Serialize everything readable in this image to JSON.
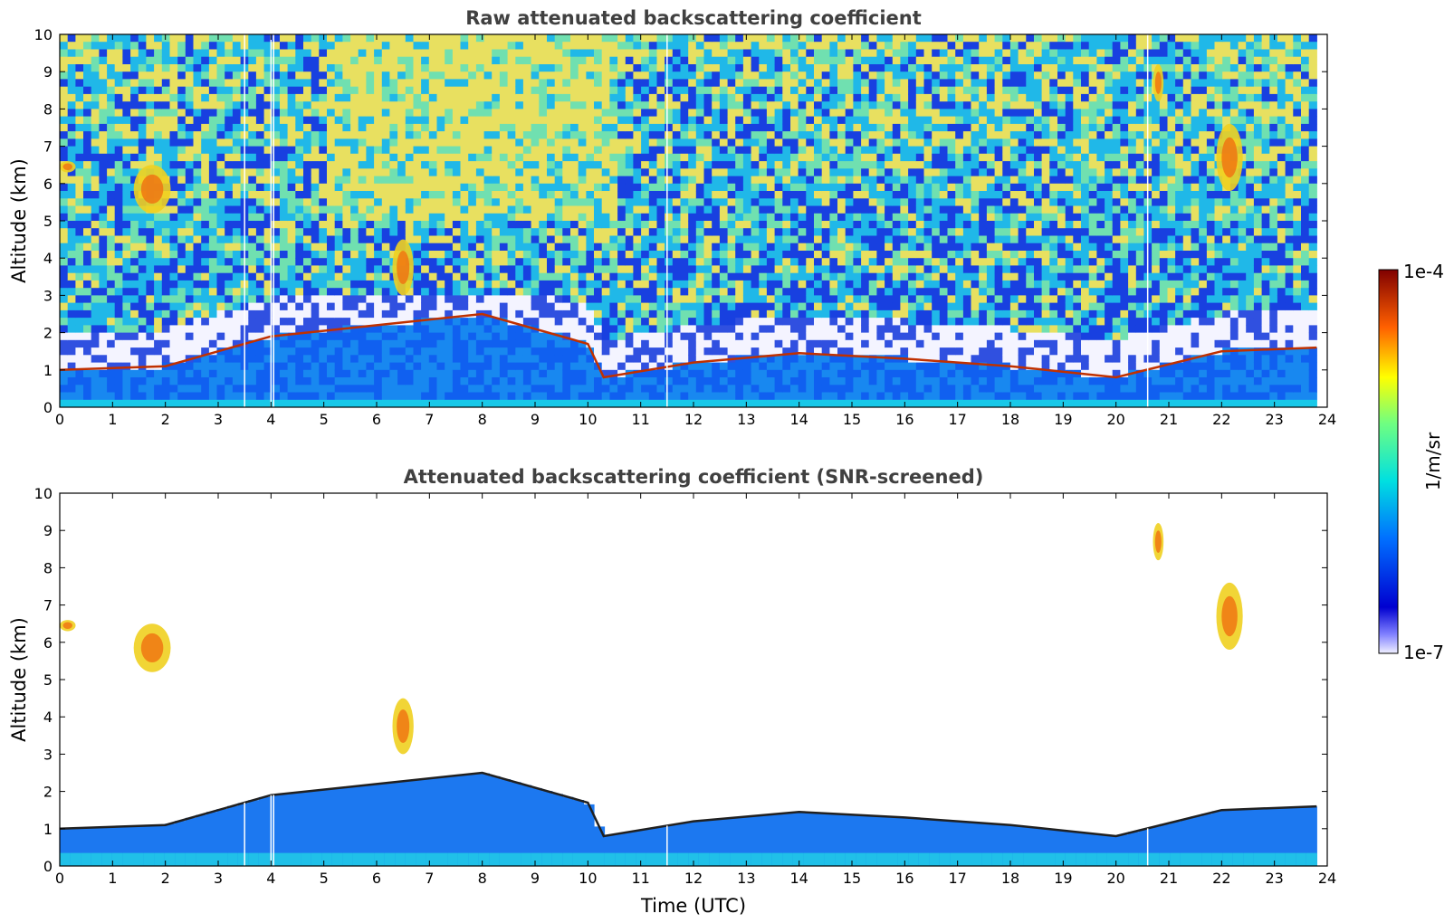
{
  "chart_data": [
    {
      "type": "heatmap",
      "title": "Raw attenuated backscattering coefficient",
      "xlabel": "",
      "ylabel": "Altitude (km)",
      "xlim": [
        0,
        24
      ],
      "ylim": [
        0,
        10
      ],
      "xticks": [
        0,
        1,
        2,
        3,
        4,
        5,
        6,
        7,
        8,
        9,
        10,
        11,
        12,
        13,
        14,
        15,
        16,
        17,
        18,
        19,
        20,
        21,
        22,
        23,
        24
      ],
      "yticks": [
        0,
        1,
        2,
        3,
        4,
        5,
        6,
        7,
        8,
        9,
        10
      ],
      "data_gaps_utc": [
        3.5,
        4.0,
        4.05,
        11.5,
        20.6
      ],
      "features": [
        {
          "kind": "boundary_layer",
          "t": [
            0,
            2,
            4,
            6,
            8,
            10,
            10.3,
            12,
            14,
            16,
            18,
            20,
            22,
            23.8
          ],
          "top_km": [
            1.0,
            1.1,
            1.9,
            2.2,
            2.5,
            1.7,
            0.8,
            1.2,
            1.45,
            1.3,
            1.1,
            0.8,
            1.5,
            1.6
          ]
        },
        {
          "kind": "cloud",
          "t_start": 1.4,
          "t_end": 2.1,
          "z_low_km": 5.2,
          "z_high_km": 6.5
        },
        {
          "kind": "cloud",
          "t_start": 0.0,
          "t_end": 0.3,
          "z_low_km": 6.3,
          "z_high_km": 6.6
        },
        {
          "kind": "cloud",
          "t_start": 21.9,
          "t_end": 22.4,
          "z_low_km": 5.8,
          "z_high_km": 7.6
        },
        {
          "kind": "cloud",
          "t_start": 20.7,
          "t_end": 20.9,
          "z_low_km": 8.2,
          "z_high_km": 9.2
        },
        {
          "kind": "cloud",
          "t_start": 6.3,
          "t_end": 6.7,
          "z_low_km": 3.0,
          "z_high_km": 4.5
        }
      ]
    },
    {
      "type": "heatmap",
      "title": "Attenuated backscattering coefficient (SNR-screened)",
      "xlabel": "Time (UTC)",
      "ylabel": "Altitude (km)",
      "xlim": [
        0,
        24
      ],
      "ylim": [
        0,
        10
      ],
      "xticks": [
        0,
        1,
        2,
        3,
        4,
        5,
        6,
        7,
        8,
        9,
        10,
        11,
        12,
        13,
        14,
        15,
        16,
        17,
        18,
        19,
        20,
        21,
        22,
        23,
        24
      ],
      "yticks": [
        0,
        1,
        2,
        3,
        4,
        5,
        6,
        7,
        8,
        9,
        10
      ],
      "screened": true
    }
  ],
  "colorbar": {
    "label": "1/m/sr",
    "max_label": "1e-4",
    "min_label": "1e-7",
    "scale": "log",
    "colormap": "jet"
  },
  "colors": {
    "title_text": "#404040",
    "background": "#ffffff"
  }
}
